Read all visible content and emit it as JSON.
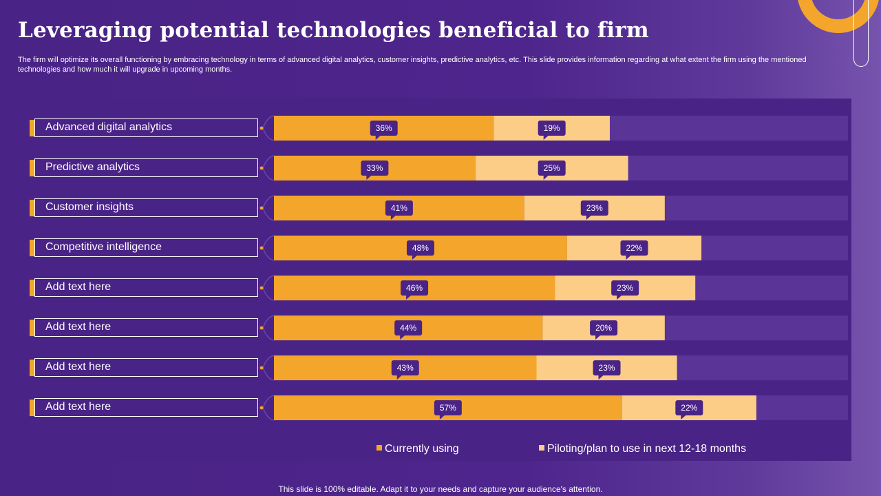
{
  "title": "Leveraging potential technologies beneficial to firm",
  "subtitle": "The firm will optimize its overall functioning by embracing technology in terms of advanced digital analytics, customer insights, predictive analytics, etc. This slide provides information regarding at what extent the firm using the mentioned technologies and how much it will upgrade in upcoming months.",
  "footer": "This slide is 100% editable. Adapt it to your needs and capture your audience's attention.",
  "colors": {
    "currently_using": "#f4a62c",
    "piloting": "#fbcd86",
    "callout": "#4a2386",
    "track": "#5a3496"
  },
  "chart_data": {
    "type": "bar",
    "orientation": "horizontal",
    "stacked": true,
    "categories": [
      "Advanced digital analytics",
      "Predictive analytics",
      "Customer insights",
      "Competitive intelligence",
      "Add text here",
      "Add text here",
      "Add text here",
      "Add text here"
    ],
    "series": [
      {
        "name": "Currently using",
        "values": [
          36,
          33,
          41,
          48,
          46,
          44,
          43,
          57
        ]
      },
      {
        "name": "Piloting/plan to use in next 12-18 months",
        "values": [
          19,
          25,
          23,
          22,
          23,
          20,
          23,
          22
        ]
      }
    ],
    "value_suffix": "%",
    "xlim": [
      0,
      94
    ],
    "legend": "bottom"
  }
}
